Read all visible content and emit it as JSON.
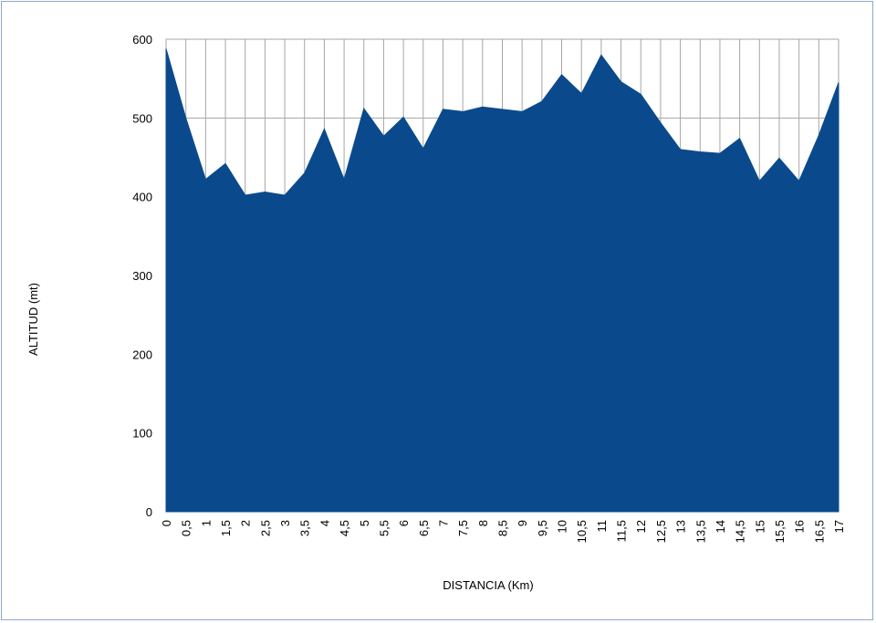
{
  "chart_data": {
    "type": "area",
    "title": "",
    "xlabel": "DISTANCIA (Km)",
    "ylabel": "ALTITUD (mt)",
    "ylim": [
      0,
      600
    ],
    "yticks": [
      "0",
      "100",
      "200",
      "300",
      "400",
      "500",
      "600"
    ],
    "grid": true,
    "legend": "none",
    "fill_color": "#0a4a8c",
    "grid_color": "#a6a6a6",
    "categories": [
      "0",
      "0,5",
      "1",
      "1,5",
      "2",
      "2,5",
      "3",
      "3,5",
      "4",
      "4,5",
      "5",
      "5,5",
      "6",
      "6,5",
      "7",
      "7,5",
      "8",
      "8,5",
      "9",
      "9,5",
      "10",
      "10,5",
      "11",
      "11,5",
      "12",
      "12,5",
      "13",
      "13,5",
      "14",
      "14,5",
      "15",
      "15,5",
      "16",
      "16,5",
      "17"
    ],
    "values": [
      588,
      500,
      422,
      442,
      402,
      406,
      402,
      430,
      486,
      422,
      512,
      477,
      501,
      461,
      511,
      508,
      514,
      511,
      508,
      521,
      555,
      531,
      580,
      546,
      530,
      494,
      460,
      457,
      455,
      474,
      420,
      449,
      420,
      478,
      545
    ]
  }
}
